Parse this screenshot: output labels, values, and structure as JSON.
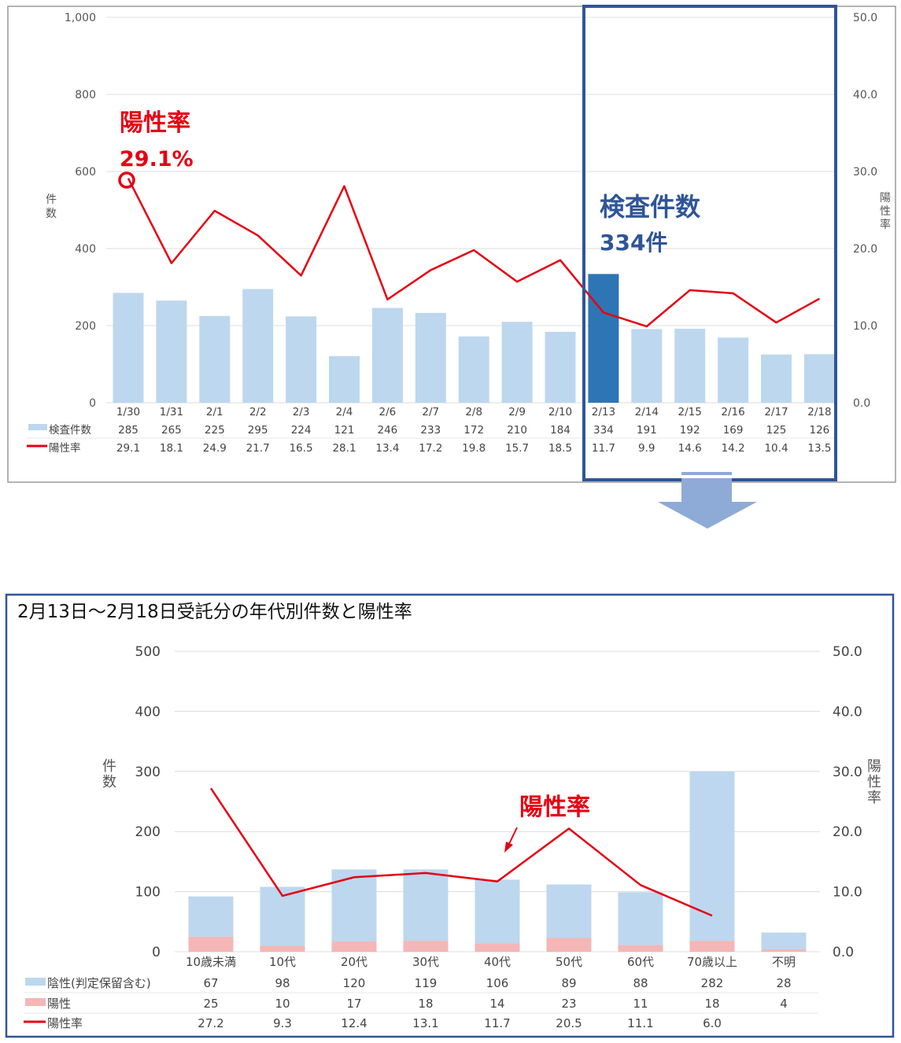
{
  "colors": {
    "bar": "#bdd7ee",
    "bar_highlight": "#2e75b6",
    "line": "#e60012",
    "positive_bar": "#f4b6b6",
    "frame_blue": "#2f5597",
    "arrow": "#8eaad6"
  },
  "chart_data": [
    {
      "type": "bar",
      "categories": [
        "1/30",
        "1/31",
        "2/1",
        "2/2",
        "2/3",
        "2/4",
        "2/6",
        "2/7",
        "2/8",
        "2/9",
        "2/10",
        "2/13",
        "2/14",
        "2/15",
        "2/16",
        "2/17",
        "2/18"
      ],
      "series": [
        {
          "name": "検査件数",
          "axis": "left",
          "values": [
            285,
            265,
            225,
            295,
            224,
            121,
            246,
            233,
            172,
            210,
            184,
            334,
            191,
            192,
            169,
            125,
            126
          ]
        },
        {
          "name": "陽性率",
          "axis": "right",
          "type": "line",
          "values": [
            29.1,
            18.1,
            24.9,
            21.7,
            16.5,
            28.1,
            13.4,
            17.2,
            19.8,
            15.7,
            18.5,
            11.7,
            9.9,
            14.6,
            14.2,
            10.4,
            13.5
          ]
        }
      ],
      "highlight_index": 11,
      "ylabel": "件数",
      "y2label": "陽性率",
      "ylim": [
        0,
        1000
      ],
      "y2lim": [
        0,
        50
      ],
      "y_ticks": [
        "1,000",
        "800",
        "600",
        "400",
        "200",
        "0"
      ],
      "y2_ticks": [
        "50.0",
        "40.0",
        "30.0",
        "20.0",
        "10.0",
        "0.0"
      ],
      "grid": true,
      "legend_placement": "bottom-table",
      "annotations": {
        "rate_title": "陽性率",
        "rate_value": "29.1%",
        "count_title": "検査件数",
        "count_value": "334件"
      }
    },
    {
      "type": "bar",
      "title": "2月13日～2月18日受託分の年代別件数と陽性率",
      "categories": [
        "10歳未満",
        "10代",
        "20代",
        "30代",
        "40代",
        "50代",
        "60代",
        "70歳以上",
        "不明"
      ],
      "series": [
        {
          "name": "陰性(判定保留含む)",
          "axis": "left",
          "stacked": true,
          "values": [
            67,
            98,
            120,
            119,
            106,
            89,
            88,
            282,
            28
          ]
        },
        {
          "name": "陽性",
          "axis": "left",
          "stacked": true,
          "values": [
            25,
            10,
            17,
            18,
            14,
            23,
            11,
            18,
            4
          ]
        },
        {
          "name": "陽性率",
          "axis": "right",
          "type": "line",
          "values": [
            27.2,
            9.3,
            12.4,
            13.1,
            11.7,
            20.5,
            11.1,
            6.0,
            null
          ]
        }
      ],
      "ylabel": "件数",
      "y2label": "陽性率",
      "ylim": [
        0,
        500
      ],
      "y2lim": [
        0,
        50
      ],
      "y_ticks": [
        "500",
        "400",
        "300",
        "200",
        "100",
        "0"
      ],
      "y2_ticks": [
        "50.0",
        "40.0",
        "30.0",
        "20.0",
        "10.0",
        "0.0"
      ],
      "grid": true,
      "legend_placement": "bottom-table",
      "annotations": {
        "rate_title": "陽性率"
      }
    }
  ]
}
